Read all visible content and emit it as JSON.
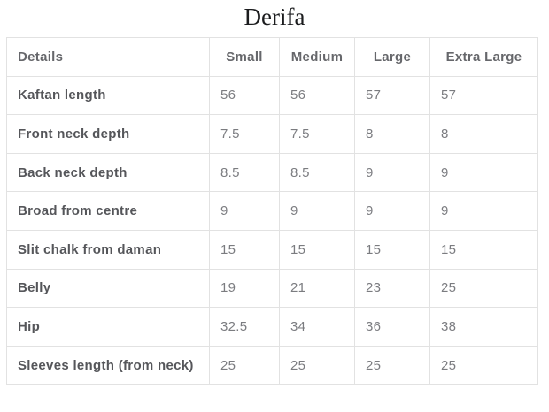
{
  "page_title": "Derifa",
  "colors": {
    "background": "#ffffff",
    "title_text": "#1b1c1e",
    "header_text": "#66676b",
    "label_text": "#55565a",
    "value_text": "#7b7c80",
    "table_border": "#e2e2e2"
  },
  "chart_data": {
    "type": "table",
    "title": "Derifa",
    "columns": [
      "Details",
      "Small",
      "Medium",
      "Large",
      "Extra Large"
    ],
    "rows": [
      {
        "label": "Kaftan length",
        "values": [
          "56",
          "56",
          "57",
          "57"
        ]
      },
      {
        "label": "Front neck depth",
        "values": [
          "7.5",
          "7.5",
          "8",
          "8"
        ]
      },
      {
        "label": "Back neck depth",
        "values": [
          "8.5",
          "8.5",
          "9",
          "9"
        ]
      },
      {
        "label": "Broad from centre",
        "values": [
          "9",
          "9",
          "9",
          "9"
        ]
      },
      {
        "label": "Slit chalk from daman",
        "values": [
          "15",
          "15",
          "15",
          "15"
        ]
      },
      {
        "label": "Belly",
        "values": [
          "19",
          "21",
          "23",
          "25"
        ]
      },
      {
        "label": "Hip",
        "values": [
          "32.5",
          "34",
          "36",
          "38"
        ]
      },
      {
        "label": "Sleeves length (from neck)",
        "values": [
          "25",
          "25",
          "25",
          "25"
        ]
      }
    ]
  }
}
